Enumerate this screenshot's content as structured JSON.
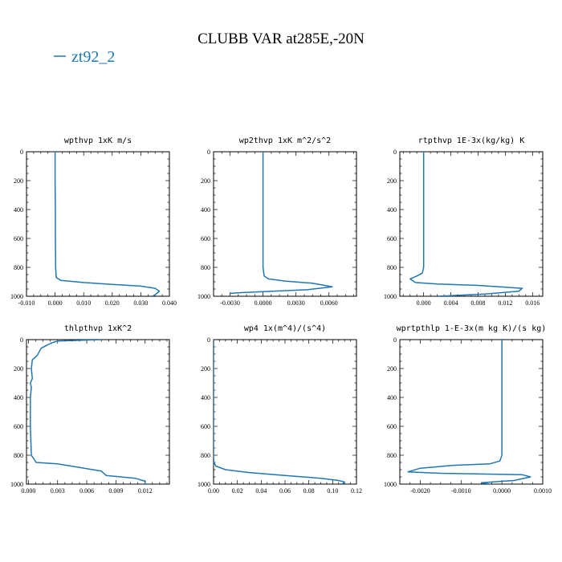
{
  "title": "CLUBB VAR at285E,-20N",
  "legend": {
    "label": "zt92_2",
    "color": "#1f77b4"
  },
  "line_color": "#1f77b4",
  "chart_data": [
    {
      "type": "line",
      "title": "wpthvp   1xK  m/s",
      "xlim": [
        -0.01,
        0.04
      ],
      "ylim": [
        1000,
        0
      ],
      "xticks": [
        -0.01,
        0.0,
        0.01,
        0.02,
        0.03,
        0.04
      ],
      "xtick_labels": [
        "-0.010",
        "0.000",
        "0.010",
        "0.020",
        "0.030",
        "0.040"
      ],
      "yticks": [
        0,
        200,
        400,
        600,
        800,
        1000
      ],
      "ytick_labels": [
        "0",
        "200",
        "400",
        "600",
        "800",
        "1000"
      ],
      "series": [
        {
          "x": [
            0.0,
            0.0,
            0.0001,
            0.0001,
            0.0002,
            0.0004,
            0.002,
            0.01,
            0.02,
            0.03,
            0.035,
            0.0365,
            0.035,
            0.034
          ],
          "y": [
            0,
            200,
            400,
            600,
            800,
            870,
            890,
            905,
            918,
            930,
            945,
            965,
            990,
            1000
          ]
        }
      ]
    },
    {
      "type": "line",
      "title": "wp2thvp   1xK  m^2/s^2",
      "xlim": [
        -0.0045,
        0.0085
      ],
      "ylim": [
        1000,
        0
      ],
      "xticks": [
        -0.003,
        0.0,
        0.003,
        0.006
      ],
      "xtick_labels": [
        "-0.0030",
        "0.0000",
        "0.0030",
        "0.0060"
      ],
      "yticks": [
        0,
        200,
        400,
        600,
        800,
        1000
      ],
      "ytick_labels": [
        "0",
        "200",
        "400",
        "600",
        "800",
        "1000"
      ],
      "series": [
        {
          "x": [
            0.0,
            0.0,
            0.0,
            0.0,
            0.0,
            0.0001,
            0.0005,
            0.002,
            0.0045,
            0.0063,
            0.004,
            0.0,
            -0.002,
            -0.003
          ],
          "y": [
            0,
            200,
            400,
            600,
            800,
            860,
            880,
            895,
            910,
            935,
            955,
            968,
            975,
            980
          ]
        }
      ]
    },
    {
      "type": "line",
      "title": "rtpthvp   1E-3x(kg/kg) K",
      "xlim": [
        -0.0035,
        0.0175
      ],
      "ylim": [
        1000,
        0
      ],
      "xticks": [
        0.0,
        0.004,
        0.008,
        0.012,
        0.016
      ],
      "xtick_labels": [
        "0.000",
        "0.004",
        "0.008",
        "0.012",
        "0.016"
      ],
      "yticks": [
        0,
        200,
        400,
        600,
        800,
        1000
      ],
      "ytick_labels": [
        "0",
        "200",
        "400",
        "600",
        "800",
        "1000"
      ],
      "series": [
        {
          "x": [
            0.0,
            0.0,
            0.0,
            0.0,
            0.0,
            -0.0002,
            -0.001,
            -0.002,
            -0.0012,
            0.002,
            0.008,
            0.0145,
            0.014,
            0.009,
            0.002
          ],
          "y": [
            0,
            200,
            400,
            600,
            800,
            840,
            860,
            880,
            905,
            915,
            925,
            945,
            965,
            985,
            1000
          ]
        }
      ]
    },
    {
      "type": "line",
      "title": "thlpthvp   1xK^2",
      "xlim": [
        -0.0002,
        0.0145
      ],
      "ylim": [
        1000,
        0
      ],
      "xticks": [
        0.0,
        0.003,
        0.006,
        0.009,
        0.012
      ],
      "xtick_labels": [
        "0.000",
        "0.003",
        "0.006",
        "0.009",
        "0.012"
      ],
      "yticks": [
        0,
        200,
        400,
        600,
        800,
        1000
      ],
      "ytick_labels": [
        "0",
        "200",
        "400",
        "600",
        "800",
        "1000"
      ],
      "series": [
        {
          "x": [
            0.0075,
            0.003,
            0.0025,
            0.002,
            0.0013,
            0.0009,
            0.0004,
            0.0003,
            0.0004,
            0.0002,
            0.0003,
            0.0002,
            0.0002,
            0.0003,
            0.0008,
            0.003,
            0.0075,
            0.008,
            0.011,
            0.012,
            0.012
          ],
          "y": [
            0,
            10,
            20,
            35,
            60,
            110,
            140,
            200,
            270,
            300,
            330,
            400,
            600,
            800,
            850,
            860,
            910,
            940,
            960,
            980,
            1000
          ]
        }
      ]
    },
    {
      "type": "line",
      "title": "wp4   1x(m^4)/(s^4)",
      "xlim": [
        0.0,
        0.12
      ],
      "ylim": [
        1000,
        0
      ],
      "xticks": [
        0.0,
        0.02,
        0.04,
        0.06,
        0.08,
        0.1,
        0.12
      ],
      "xtick_labels": [
        "0.00",
        "0.02",
        "0.04",
        "0.06",
        "0.08",
        "0.10",
        "0.12"
      ],
      "yticks": [
        0,
        200,
        400,
        600,
        800,
        1000
      ],
      "ytick_labels": [
        "0",
        "200",
        "400",
        "600",
        "800",
        "1000"
      ],
      "series": [
        {
          "x": [
            0.0,
            0.0,
            0.0,
            0.0,
            0.0,
            0.0002,
            0.002,
            0.01,
            0.03,
            0.06,
            0.09,
            0.105,
            0.11,
            0.108
          ],
          "y": [
            0,
            200,
            400,
            600,
            800,
            850,
            875,
            900,
            920,
            940,
            960,
            975,
            985,
            1000
          ]
        }
      ]
    },
    {
      "type": "line",
      "title": "wprtpthlp   1-E-3x(m kg K)/(s kg)",
      "xlim": [
        -0.0025,
        0.001
      ],
      "ylim": [
        1000,
        0
      ],
      "xticks": [
        -0.002,
        -0.001,
        0.0,
        0.001
      ],
      "xtick_labels": [
        "-0.0020",
        "-0.0010",
        "0.0000",
        "0.0010"
      ],
      "yticks": [
        0,
        200,
        400,
        600,
        800,
        1000
      ],
      "ytick_labels": [
        "0",
        "200",
        "400",
        "600",
        "800",
        "1000"
      ],
      "series": [
        {
          "x": [
            0.0,
            0.0,
            0.0,
            0.0,
            0.0,
            -5e-05,
            -0.0003,
            -0.0012,
            -0.002,
            -0.0023,
            -0.0015,
            0.0005,
            0.0007,
            0.0003,
            -0.0005,
            -0.0003
          ],
          "y": [
            0,
            200,
            400,
            600,
            800,
            840,
            860,
            870,
            890,
            915,
            925,
            935,
            950,
            975,
            990,
            1000
          ]
        }
      ]
    }
  ]
}
